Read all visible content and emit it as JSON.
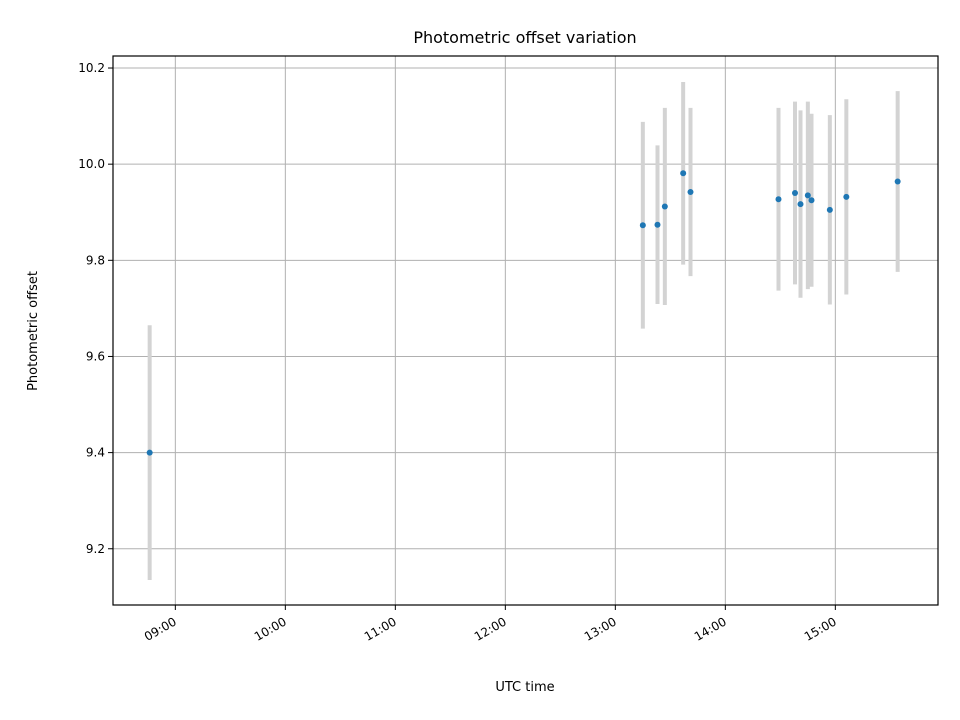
{
  "chart_data": {
    "type": "scatter",
    "title": "Photometric offset variation",
    "xlabel": "UTC time",
    "ylabel": "Photometric offset",
    "x_ticks": [
      "09:00",
      "10:00",
      "11:00",
      "12:00",
      "13:00",
      "14:00",
      "15:00"
    ],
    "x_range": [
      "08:26",
      "15:56"
    ],
    "y_ticks": [
      "9.2",
      "9.4",
      "9.6",
      "9.8",
      "10.0",
      "10.2"
    ],
    "ylim": [
      9.083,
      10.225
    ],
    "grid": true,
    "error_bar_color": "#d3d3d3",
    "marker_color": "#1f77b4",
    "points": [
      {
        "x": "08:46",
        "y": 9.4,
        "err": 0.265
      },
      {
        "x": "13:15",
        "y": 9.873,
        "err": 0.215
      },
      {
        "x": "13:23",
        "y": 9.874,
        "err": 0.165
      },
      {
        "x": "13:27",
        "y": 9.912,
        "err": 0.205
      },
      {
        "x": "13:37",
        "y": 9.981,
        "err": 0.19
      },
      {
        "x": "13:41",
        "y": 9.942,
        "err": 0.175
      },
      {
        "x": "14:29",
        "y": 9.927,
        "err": 0.19
      },
      {
        "x": "14:38",
        "y": 9.94,
        "err": 0.19
      },
      {
        "x": "14:41",
        "y": 9.917,
        "err": 0.195
      },
      {
        "x": "14:45",
        "y": 9.935,
        "err": 0.195
      },
      {
        "x": "14:47",
        "y": 9.925,
        "err": 0.18
      },
      {
        "x": "14:57",
        "y": 9.905,
        "err": 0.197
      },
      {
        "x": "15:06",
        "y": 9.932,
        "err": 0.203
      },
      {
        "x": "15:34",
        "y": 9.964,
        "err": 0.188
      }
    ]
  }
}
